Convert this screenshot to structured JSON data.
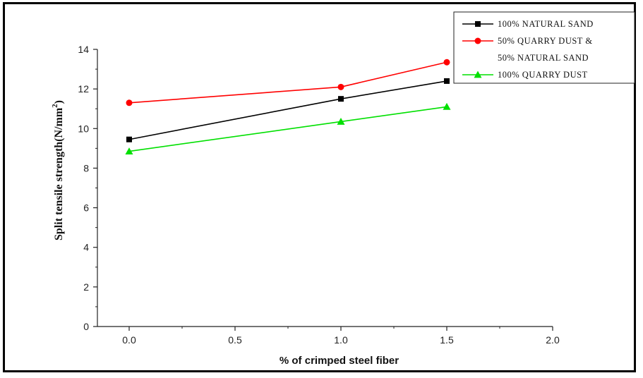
{
  "chart_data": {
    "type": "line",
    "xlabel": "% of crimped steel fiber",
    "ylabel_main": "Split tensile strength(N/mm",
    "ylabel_sup": "2",
    "ylabel_close": ")",
    "xlim": [
      -0.15,
      2.0
    ],
    "ylim": [
      0,
      14
    ],
    "x_ticks": [
      0.0,
      0.5,
      1.0,
      1.5,
      2.0
    ],
    "x_tick_labels": [
      "0.0",
      "0.5",
      "1.0",
      "1.5",
      "2.0"
    ],
    "y_ticks": [
      0,
      2,
      4,
      6,
      8,
      10,
      12,
      14
    ],
    "y_tick_labels": [
      "0",
      "2",
      "4",
      "6",
      "8",
      "10",
      "12",
      "14"
    ],
    "grid": false,
    "legend_position": "top-right",
    "series": [
      {
        "name": "100% NATURAL SAND",
        "legend_lines": [
          "100% NATURAL SAND"
        ],
        "color": "#000000",
        "marker": "square",
        "x": [
          0.0,
          1.0,
          1.5
        ],
        "y": [
          9.45,
          11.5,
          12.4
        ]
      },
      {
        "name": "50% QUARRY DUST & 50% NATURAL SAND",
        "legend_lines": [
          "50% QUARRY DUST &",
          "50% NATURAL SAND"
        ],
        "color": "#ff0000",
        "marker": "circle",
        "x": [
          0.0,
          1.0,
          1.5
        ],
        "y": [
          11.3,
          12.1,
          13.35
        ]
      },
      {
        "name": "100% QUARRY DUST",
        "legend_lines": [
          "100% QUARRY DUST"
        ],
        "color": "#00e000",
        "marker": "triangle",
        "x": [
          0.0,
          1.0,
          1.5
        ],
        "y": [
          8.85,
          10.35,
          11.1
        ]
      }
    ]
  }
}
